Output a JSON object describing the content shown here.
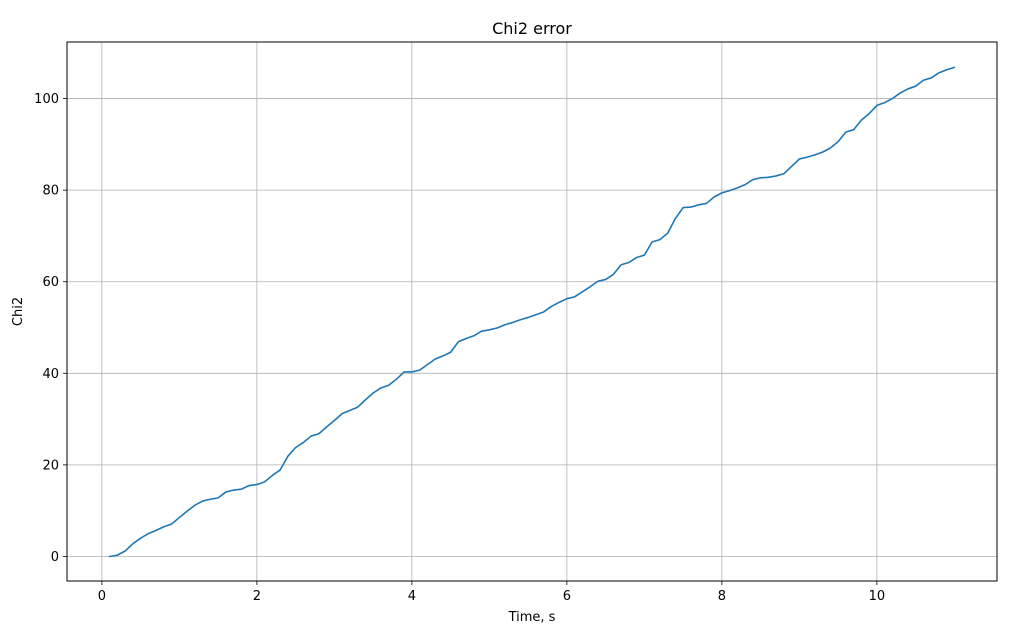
{
  "chart_data": {
    "type": "line",
    "title": "Chi2 error",
    "xlabel": "Time, s",
    "ylabel": "Chi2",
    "xlim": [
      -0.45,
      11.55
    ],
    "ylim": [
      -5.35,
      112.35
    ],
    "xticks": [
      0,
      2,
      4,
      6,
      8,
      10
    ],
    "yticks": [
      0,
      20,
      40,
      60,
      80,
      100
    ],
    "grid": true,
    "line_color": "#1f77b4",
    "grid_color": "#b0b0b0",
    "series": [
      {
        "x": [
          0.1,
          0.2,
          0.3,
          0.4,
          0.5,
          0.6,
          0.7,
          0.8,
          0.9,
          1.0,
          1.1,
          1.2,
          1.3,
          1.4,
          1.5,
          1.6,
          1.7,
          1.8,
          1.9,
          2.0,
          2.1,
          2.2,
          2.3,
          2.4,
          2.5,
          2.6,
          2.7,
          2.8,
          2.9,
          3.0,
          3.1,
          3.2,
          3.3,
          3.4,
          3.5,
          3.6,
          3.7,
          3.8,
          3.9,
          4.0,
          4.1,
          4.2,
          4.3,
          4.4,
          4.5,
          4.6,
          4.7,
          4.8,
          4.9,
          5.0,
          5.1,
          5.2,
          5.3,
          5.4,
          5.5,
          5.6,
          5.7,
          5.8,
          5.9,
          6.0,
          6.1,
          6.2,
          6.3,
          6.4,
          6.5,
          6.6,
          6.7,
          6.8,
          6.9,
          7.0,
          7.1,
          7.2,
          7.3,
          7.4,
          7.5,
          7.6,
          7.7,
          7.8,
          7.9,
          8.0,
          8.1,
          8.2,
          8.3,
          8.4,
          8.5,
          8.6,
          8.7,
          8.8,
          8.9,
          9.0,
          9.1,
          9.2,
          9.3,
          9.4,
          9.5,
          9.6,
          9.7,
          9.8,
          9.9,
          10.0,
          10.1,
          10.2,
          10.3,
          10.4,
          10.5,
          10.6,
          10.7,
          10.8,
          10.9,
          11.0
        ],
        "y": [
          0.0,
          0.3,
          1.2,
          2.8,
          4.0,
          5.0,
          5.7,
          6.5,
          7.1,
          8.5,
          9.9,
          11.2,
          12.1,
          12.5,
          12.8,
          14.1,
          14.5,
          14.7,
          15.5,
          15.7,
          16.3,
          17.7,
          18.9,
          21.9,
          23.8,
          24.9,
          26.3,
          26.8,
          28.3,
          29.7,
          31.2,
          31.9,
          32.6,
          34.2,
          35.7,
          36.8,
          37.4,
          38.7,
          40.3,
          40.3,
          40.7,
          41.9,
          43.1,
          43.8,
          44.6,
          46.9,
          47.6,
          48.2,
          49.2,
          49.5,
          49.9,
          50.6,
          51.1,
          51.7,
          52.2,
          52.8,
          53.4,
          54.6,
          55.5,
          56.3,
          56.7,
          57.8,
          58.9,
          60.1,
          60.5,
          61.6,
          63.7,
          64.2,
          65.3,
          65.8,
          68.7,
          69.2,
          70.6,
          73.8,
          76.2,
          76.3,
          76.8,
          77.1,
          78.5,
          79.4,
          79.9,
          80.5,
          81.2,
          82.3,
          82.7,
          82.8,
          83.1,
          83.6,
          85.2,
          86.8,
          87.2,
          87.7,
          88.3,
          89.2,
          90.6,
          92.7,
          93.2,
          95.3,
          96.7,
          98.5,
          99.1,
          100.0,
          101.2,
          102.1,
          102.7,
          104.0,
          104.5,
          105.6,
          106.3,
          106.8
        ]
      }
    ]
  }
}
